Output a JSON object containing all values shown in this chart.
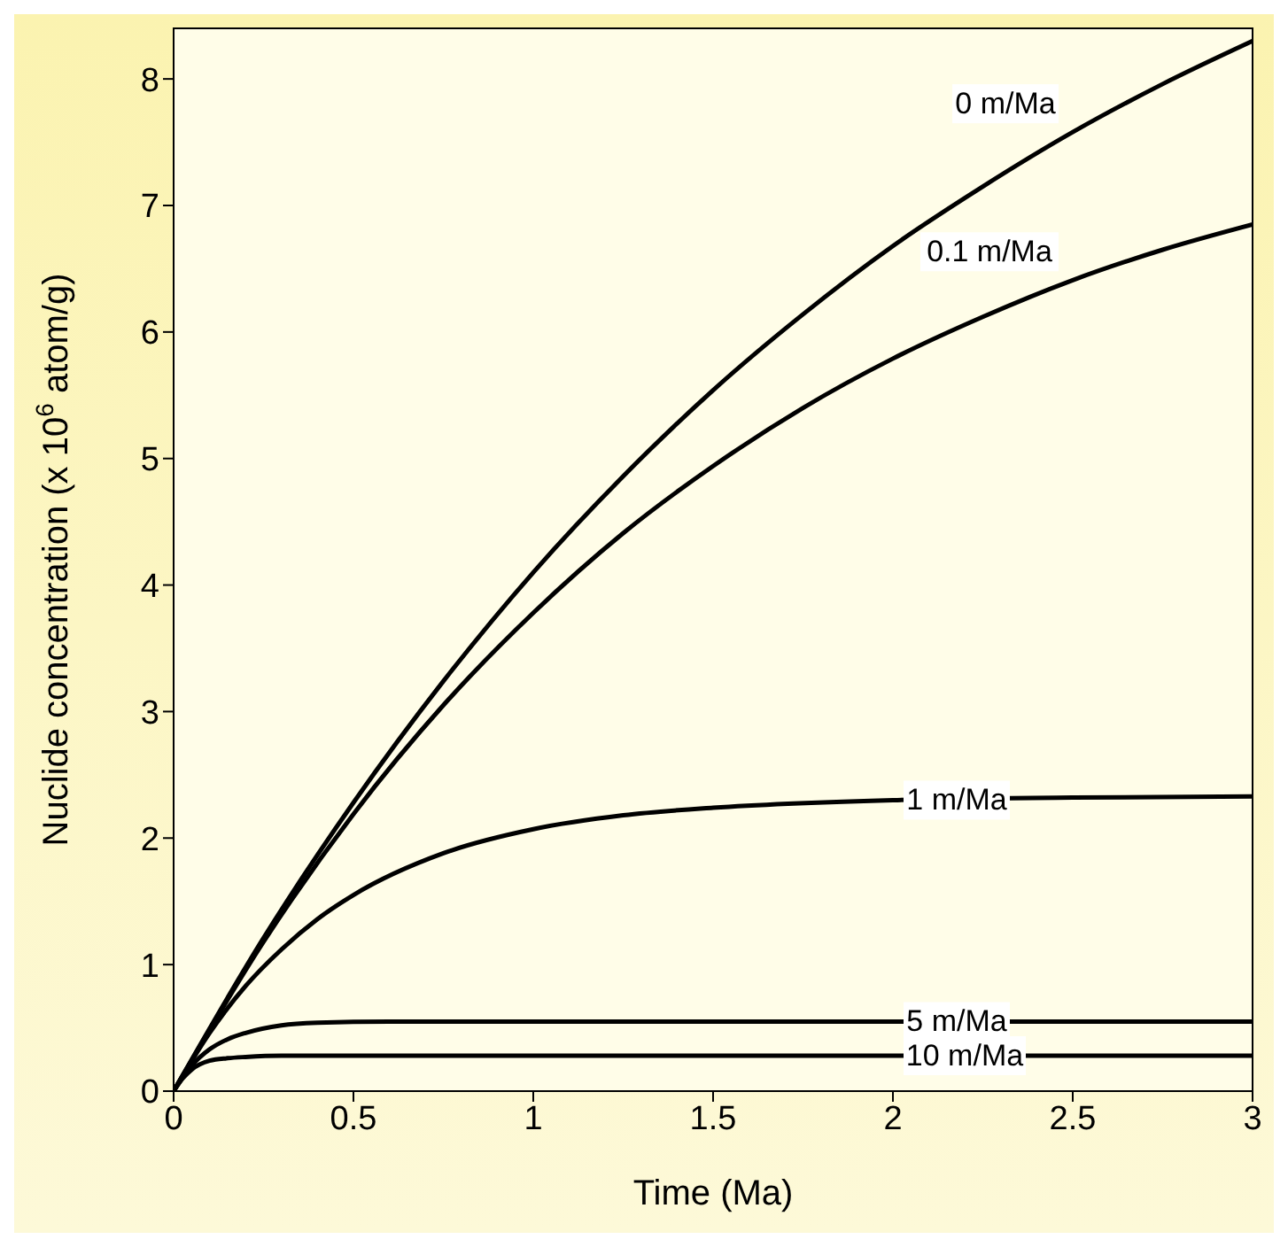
{
  "chart_data": {
    "type": "line",
    "xlabel": "Time (Ma)",
    "ylabel": "Nuclide concentration (x 10$^{6}$ atom/g)",
    "xlim": [
      0,
      3
    ],
    "ylim": [
      0,
      8.4
    ],
    "xticks": [
      0,
      0.5,
      1,
      1.5,
      2,
      2.5,
      3
    ],
    "yticks": [
      0,
      1,
      2,
      3,
      4,
      5,
      6,
      7,
      8
    ],
    "marker": "none",
    "line_style": "solid",
    "series": [
      {
        "name": "0 m/Ma",
        "color": "#000000",
        "x": [
          0,
          0.25,
          0.5,
          0.75,
          1,
          1.25,
          1.5,
          1.75,
          2,
          2.25,
          2.5,
          2.75,
          3
        ],
        "values": [
          0,
          1.21,
          2.28,
          3.24,
          4.1,
          4.86,
          5.54,
          6.14,
          6.68,
          7.15,
          7.58,
          7.96,
          8.3
        ]
      },
      {
        "name": "0.1 m/Ma",
        "color": "#000000",
        "x": [
          0,
          0.25,
          0.5,
          0.75,
          1,
          1.25,
          1.5,
          1.75,
          2,
          2.25,
          2.5,
          2.75,
          3
        ],
        "values": [
          0,
          1.18,
          2.19,
          3.05,
          3.78,
          4.41,
          4.94,
          5.4,
          5.79,
          6.12,
          6.41,
          6.65,
          6.85
        ]
      },
      {
        "name": "1 m/Ma",
        "color": "#000000",
        "x": [
          0,
          0.1,
          0.2,
          0.3,
          0.4,
          0.5,
          0.75,
          1,
          1.25,
          1.5,
          2,
          2.5,
          3
        ],
        "values": [
          0,
          0.46,
          0.83,
          1.12,
          1.36,
          1.55,
          1.88,
          2.07,
          2.18,
          2.24,
          2.3,
          2.32,
          2.33
        ]
      },
      {
        "name": "5 m/Ma",
        "color": "#000000",
        "x": [
          0,
          0.05,
          0.1,
          0.15,
          0.2,
          0.3,
          0.4,
          0.6,
          1,
          2,
          2.5,
          3
        ],
        "values": [
          0,
          0.2,
          0.33,
          0.41,
          0.46,
          0.52,
          0.54,
          0.55,
          0.55,
          0.55,
          0.55,
          0.55
        ]
      },
      {
        "name": "10 m/Ma",
        "color": "#000000",
        "x": [
          0,
          0.025,
          0.05,
          0.1,
          0.15,
          0.2,
          0.3,
          1,
          2,
          2.5,
          3
        ],
        "values": [
          0,
          0.1,
          0.17,
          0.24,
          0.26,
          0.27,
          0.28,
          0.28,
          0.28,
          0.28,
          0.28
        ]
      }
    ]
  }
}
